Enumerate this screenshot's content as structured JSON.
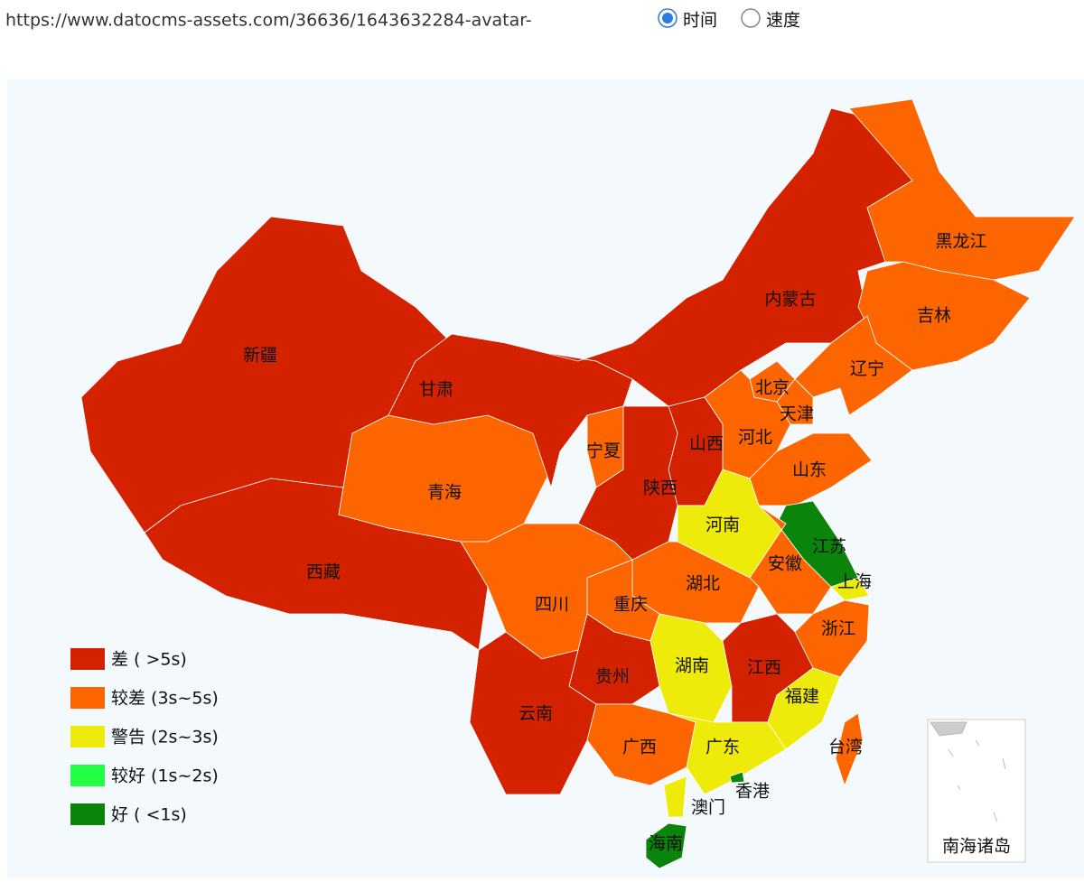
{
  "header": {
    "url": "https://www.datocms-assets.com/36636/1643632284-avatar-",
    "options": [
      {
        "label": "时间",
        "checked": true
      },
      {
        "label": "速度",
        "checked": false
      }
    ]
  },
  "legend": [
    {
      "label": "差 ( >5s)",
      "color": "#d42200"
    },
    {
      "label": "较差 (3s~5s)",
      "color": "#fc6500"
    },
    {
      "label": "警告 (2s~3s)",
      "color": "#eeea0a"
    },
    {
      "label": "较好 (1s~2s)",
      "color": "#22ff44"
    },
    {
      "label": "好 ( <1s)",
      "color": "#0a840a"
    }
  ],
  "regions": [
    {
      "name": "新疆",
      "level": 0
    },
    {
      "name": "西藏",
      "level": 0
    },
    {
      "name": "青海",
      "level": 1
    },
    {
      "name": "甘肃",
      "level": 0
    },
    {
      "name": "内蒙古",
      "level": 0
    },
    {
      "name": "黑龙江",
      "level": 1
    },
    {
      "name": "吉林",
      "level": 1
    },
    {
      "name": "辽宁",
      "level": 1
    },
    {
      "name": "北京",
      "level": 1
    },
    {
      "name": "天津",
      "level": 1
    },
    {
      "name": "河北",
      "level": 1
    },
    {
      "name": "山西",
      "level": 0
    },
    {
      "name": "宁夏",
      "level": 1
    },
    {
      "name": "陕西",
      "level": 0
    },
    {
      "name": "山东",
      "level": 1
    },
    {
      "name": "河南",
      "level": 2
    },
    {
      "name": "江苏",
      "level": 4
    },
    {
      "name": "上海",
      "level": 2
    },
    {
      "name": "安徽",
      "level": 1
    },
    {
      "name": "湖北",
      "level": 1
    },
    {
      "name": "重庆",
      "level": 1
    },
    {
      "name": "四川",
      "level": 1
    },
    {
      "name": "浙江",
      "level": 1
    },
    {
      "name": "湖南",
      "level": 2
    },
    {
      "name": "江西",
      "level": 0
    },
    {
      "name": "贵州",
      "level": 0
    },
    {
      "name": "云南",
      "level": 0
    },
    {
      "name": "福建",
      "level": 2
    },
    {
      "name": "广西",
      "level": 1
    },
    {
      "name": "广东",
      "level": 2
    },
    {
      "name": "台湾",
      "level": 1
    },
    {
      "name": "香港",
      "level": 4
    },
    {
      "name": "澳门",
      "level": 2
    },
    {
      "name": "海南",
      "level": 4
    }
  ],
  "inset_label": "南海诸岛"
}
